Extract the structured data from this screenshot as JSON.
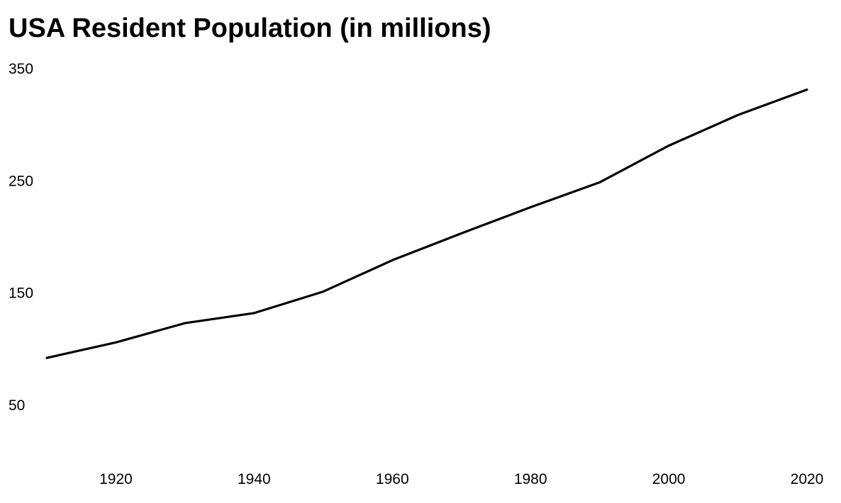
{
  "colors": {
    "line": "#000000",
    "background": "#ffffff",
    "text": "#000000"
  },
  "chart_data": {
    "type": "line",
    "title": "USA Resident Population (in millions)",
    "xlabel": "",
    "ylabel": "",
    "grid": false,
    "legend": "none",
    "xlim": [
      1910,
      2020
    ],
    "ylim": [
      50,
      350
    ],
    "x_ticks": [
      1920,
      1940,
      1960,
      1980,
      2000,
      2020
    ],
    "y_ticks": [
      50,
      150,
      250,
      350
    ],
    "x": [
      1910,
      1920,
      1930,
      1940,
      1950,
      1960,
      1970,
      1980,
      1990,
      2000,
      2010,
      2020
    ],
    "series": [
      {
        "values": [
          92.2,
          106.0,
          123.2,
          132.2,
          151.3,
          179.3,
          203.2,
          226.5,
          248.7,
          281.4,
          308.7,
          331.4
        ]
      }
    ]
  }
}
